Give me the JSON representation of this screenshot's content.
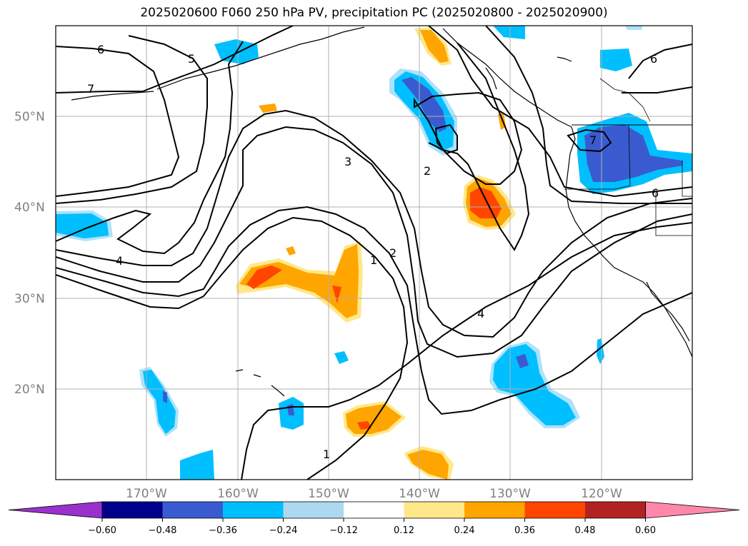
{
  "title": "2025020600 F060 250 hPa PV, precipitation PC (2025020800 - 2025020900)",
  "lat_labels": [
    "50°N",
    "40°N",
    "30°N",
    "20°N"
  ],
  "lon_labels": [
    "170°W",
    "160°W",
    "150°W",
    "140°W",
    "130°W",
    "120°W"
  ],
  "contour_labels": [
    "6",
    "5",
    "7",
    "4",
    "3",
    "2",
    "1",
    "2",
    "1",
    "4",
    "7",
    "6",
    "6",
    "1"
  ],
  "colorbar": {
    "tick_labels": [
      "−0.60",
      "−0.48",
      "−0.36",
      "−0.24",
      "−0.12",
      "0.12",
      "0.24",
      "0.36",
      "0.48",
      "0.60"
    ],
    "colors": [
      "#9932cc",
      "#00008b",
      "#3a5bd0",
      "#00bfff",
      "#add8f0",
      "#ffffff",
      "#ffe88a",
      "#ffa500",
      "#ff4500",
      "#b22222",
      "#ff88aa"
    ]
  },
  "fill_colors": {
    "blue_light": "#aee2fa",
    "blue": "#00bfff",
    "blue_dark": "#3a5bd0",
    "yellow": "#ffe88a",
    "orange": "#ffa500",
    "red": "#ff4500"
  }
}
